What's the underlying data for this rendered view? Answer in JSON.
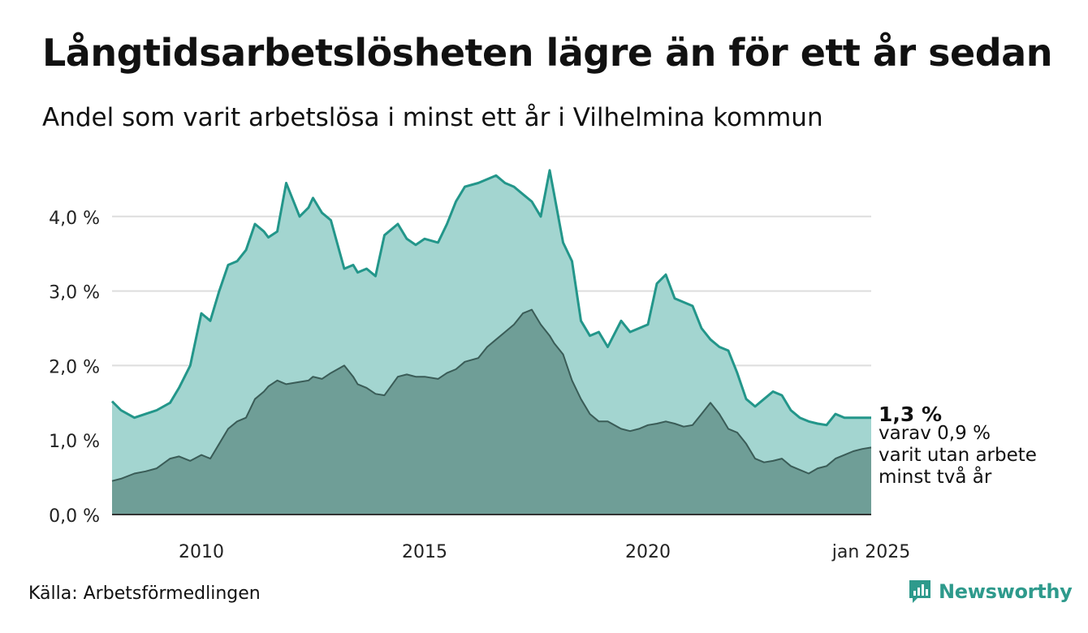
{
  "title": "Långtidsarbetslösheten lägre än för ett år sedan",
  "subtitle": "Andel som varit arbetslösa i minst ett år i Vilhelmina kommun",
  "source": "Källa: Arbetsförmedlingen",
  "brand": "Newsworthy",
  "chart_data": {
    "type": "area",
    "x_range": [
      2008.0,
      2025.0
    ],
    "ylim": [
      0,
      4.7
    ],
    "grid": true,
    "y_ticks": [
      {
        "value": 0,
        "label": "0,0 %"
      },
      {
        "value": 1,
        "label": "1,0 %"
      },
      {
        "value": 2,
        "label": "2,0 %"
      },
      {
        "value": 3,
        "label": "3,0 %"
      },
      {
        "value": 4,
        "label": "4,0 %"
      }
    ],
    "x_ticks": [
      {
        "value": 2010,
        "label": "2010"
      },
      {
        "value": 2015,
        "label": "2015"
      },
      {
        "value": 2020,
        "label": "2020"
      },
      {
        "value": 2025,
        "label": "jan 2025"
      }
    ],
    "colors": {
      "total_fill": "#a3d5d0",
      "total_line": "#23968a",
      "long_fill": "#6f9e97",
      "long_line": "#3a5c57",
      "grid": "#dddddd"
    },
    "series": [
      {
        "key": "total",
        "x": [
          2008.0,
          2008.2,
          2008.5,
          2008.75,
          2009.0,
          2009.3,
          2009.5,
          2009.75,
          2010.0,
          2010.2,
          2010.4,
          2010.6,
          2010.8,
          2011.0,
          2011.2,
          2011.4,
          2011.5,
          2011.7,
          2011.9,
          2012.2,
          2012.4,
          2012.5,
          2012.7,
          2012.9,
          2013.2,
          2013.4,
          2013.5,
          2013.7,
          2013.9,
          2014.1,
          2014.4,
          2014.6,
          2014.8,
          2015.0,
          2015.3,
          2015.5,
          2015.7,
          2015.9,
          2016.2,
          2016.4,
          2016.6,
          2016.8,
          2017.0,
          2017.2,
          2017.4,
          2017.6,
          2017.8,
          2017.9,
          2018.1,
          2018.3,
          2018.5,
          2018.7,
          2018.9,
          2019.1,
          2019.4,
          2019.6,
          2019.8,
          2020.0,
          2020.2,
          2020.4,
          2020.6,
          2020.8,
          2021.0,
          2021.2,
          2021.4,
          2021.6,
          2021.8,
          2022.0,
          2022.2,
          2022.4,
          2022.6,
          2022.8,
          2023.0,
          2023.2,
          2023.4,
          2023.6,
          2023.8,
          2024.0,
          2024.2,
          2024.4,
          2024.6,
          2024.8,
          2025.0
        ],
        "values": [
          1.52,
          1.4,
          1.3,
          1.35,
          1.4,
          1.5,
          1.7,
          2.0,
          2.7,
          2.6,
          3.0,
          3.35,
          3.4,
          3.55,
          3.9,
          3.8,
          3.72,
          3.8,
          4.45,
          4.0,
          4.12,
          4.25,
          4.05,
          3.95,
          3.3,
          3.35,
          3.25,
          3.3,
          3.2,
          3.75,
          3.9,
          3.7,
          3.62,
          3.7,
          3.65,
          3.9,
          4.2,
          4.4,
          4.45,
          4.5,
          4.55,
          4.45,
          4.4,
          4.3,
          4.2,
          4.0,
          4.62,
          4.3,
          3.65,
          3.4,
          2.6,
          2.4,
          2.45,
          2.25,
          2.6,
          2.45,
          2.5,
          2.55,
          3.1,
          3.22,
          2.9,
          2.85,
          2.8,
          2.5,
          2.35,
          2.25,
          2.2,
          1.9,
          1.55,
          1.45,
          1.55,
          1.65,
          1.6,
          1.4,
          1.3,
          1.25,
          1.22,
          1.2,
          1.35,
          1.3,
          1.3,
          1.3,
          1.3
        ]
      },
      {
        "key": "long",
        "x": [
          2008.0,
          2008.2,
          2008.5,
          2008.75,
          2009.0,
          2009.3,
          2009.5,
          2009.75,
          2010.0,
          2010.2,
          2010.4,
          2010.6,
          2010.8,
          2011.0,
          2011.2,
          2011.4,
          2011.5,
          2011.7,
          2011.9,
          2012.2,
          2012.4,
          2012.5,
          2012.7,
          2012.9,
          2013.2,
          2013.4,
          2013.5,
          2013.7,
          2013.9,
          2014.1,
          2014.4,
          2014.6,
          2014.8,
          2015.0,
          2015.3,
          2015.5,
          2015.7,
          2015.9,
          2016.2,
          2016.4,
          2016.6,
          2016.8,
          2017.0,
          2017.2,
          2017.4,
          2017.6,
          2017.8,
          2017.9,
          2018.1,
          2018.3,
          2018.5,
          2018.7,
          2018.9,
          2019.1,
          2019.4,
          2019.6,
          2019.8,
          2020.0,
          2020.2,
          2020.4,
          2020.6,
          2020.8,
          2021.0,
          2021.2,
          2021.4,
          2021.6,
          2021.8,
          2022.0,
          2022.2,
          2022.4,
          2022.6,
          2022.8,
          2023.0,
          2023.2,
          2023.4,
          2023.6,
          2023.8,
          2024.0,
          2024.2,
          2024.4,
          2024.6,
          2024.8,
          2025.0
        ],
        "values": [
          0.45,
          0.48,
          0.55,
          0.58,
          0.62,
          0.75,
          0.78,
          0.72,
          0.8,
          0.75,
          0.95,
          1.15,
          1.25,
          1.3,
          1.55,
          1.65,
          1.72,
          1.8,
          1.75,
          1.78,
          1.8,
          1.85,
          1.82,
          1.9,
          2.0,
          1.85,
          1.75,
          1.7,
          1.62,
          1.6,
          1.85,
          1.88,
          1.85,
          1.85,
          1.82,
          1.9,
          1.95,
          2.05,
          2.1,
          2.25,
          2.35,
          2.45,
          2.55,
          2.7,
          2.75,
          2.55,
          2.4,
          2.3,
          2.15,
          1.8,
          1.55,
          1.35,
          1.25,
          1.25,
          1.15,
          1.12,
          1.15,
          1.2,
          1.22,
          1.25,
          1.22,
          1.18,
          1.2,
          1.35,
          1.5,
          1.35,
          1.15,
          1.1,
          0.95,
          0.75,
          0.7,
          0.72,
          0.75,
          0.65,
          0.6,
          0.55,
          0.62,
          0.65,
          0.75,
          0.8,
          0.85,
          0.88,
          0.9
        ]
      }
    ],
    "end_label_value": "1,3 %",
    "end_label_lines": [
      "varav 0,9 %",
      "varit utan arbete",
      "minst två år"
    ]
  }
}
